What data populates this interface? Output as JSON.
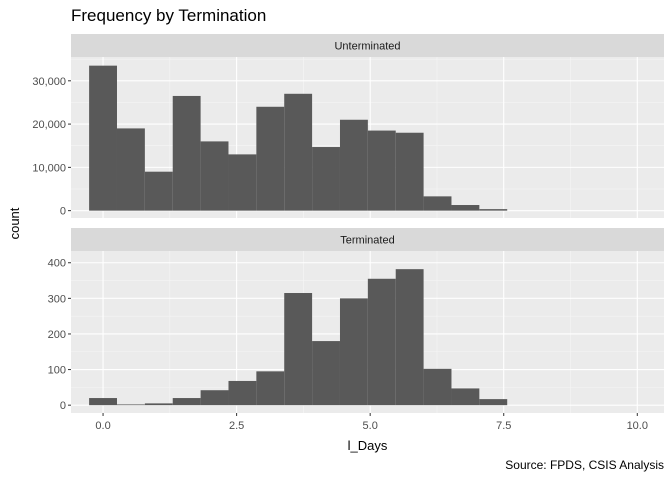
{
  "chart_data": {
    "type": "bar",
    "title": "Frequency by Termination",
    "xlabel": "l_Days",
    "ylabel": "count",
    "caption": "Source: FPDS, CSIS Analysis",
    "x_ticks": [
      0.0,
      2.5,
      5.0,
      7.5,
      10.0
    ],
    "x_tick_labels": [
      "0.0",
      "2.5",
      "5.0",
      "7.5",
      "10.0"
    ],
    "xlim": [
      -0.6,
      10.5
    ],
    "bin_width": 0.5217,
    "bin_centers": [
      0.0,
      0.5217,
      1.0435,
      1.5652,
      2.087,
      2.6087,
      3.1304,
      3.6522,
      4.1739,
      4.6957,
      5.2174,
      5.7391,
      6.2609,
      6.7826,
      7.3043
    ],
    "grid": true,
    "facets": [
      {
        "strip_label": "Unterminated",
        "ylim": [
          -1700,
          35500
        ],
        "y_ticks": [
          0,
          10000,
          20000,
          30000
        ],
        "y_tick_labels": [
          "0",
          "10,000",
          "20,000",
          "30,000"
        ],
        "values": [
          33500,
          19000,
          9000,
          26500,
          16000,
          13000,
          24000,
          27000,
          14700,
          21000,
          18500,
          18000,
          3300,
          1300,
          350
        ]
      },
      {
        "strip_label": "Terminated",
        "ylim": [
          -22,
          433
        ],
        "y_ticks": [
          0,
          100,
          200,
          300,
          400
        ],
        "y_tick_labels": [
          "0",
          "100",
          "200",
          "300",
          "400"
        ],
        "values": [
          20,
          2,
          5,
          20,
          42,
          68,
          95,
          315,
          180,
          300,
          355,
          382,
          102,
          47,
          17
        ]
      }
    ]
  }
}
